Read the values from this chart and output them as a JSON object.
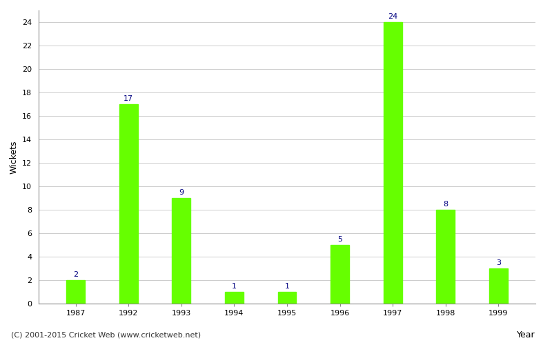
{
  "xlabel": "Year",
  "ylabel": "Wickets",
  "categories": [
    "1987",
    "1992",
    "1993",
    "1994",
    "1995",
    "1996",
    "1997",
    "1998",
    "1999"
  ],
  "values": [
    2,
    17,
    9,
    1,
    1,
    5,
    24,
    8,
    3
  ],
  "bar_color": "#66ff00",
  "bar_edge_color": "#66ff00",
  "label_color": "#000080",
  "label_fontsize": 8,
  "bar_width": 0.35,
  "ylim": [
    0,
    25
  ],
  "yticks": [
    0,
    2,
    4,
    6,
    8,
    10,
    12,
    14,
    16,
    18,
    20,
    22,
    24
  ],
  "grid_color": "#cccccc",
  "background_color": "#ffffff",
  "footer_text": "(C) 2001-2015 Cricket Web (www.cricketweb.net)",
  "footer_fontsize": 8,
  "axis_label_fontsize": 9,
  "tick_fontsize": 8,
  "spine_color": "#888888"
}
